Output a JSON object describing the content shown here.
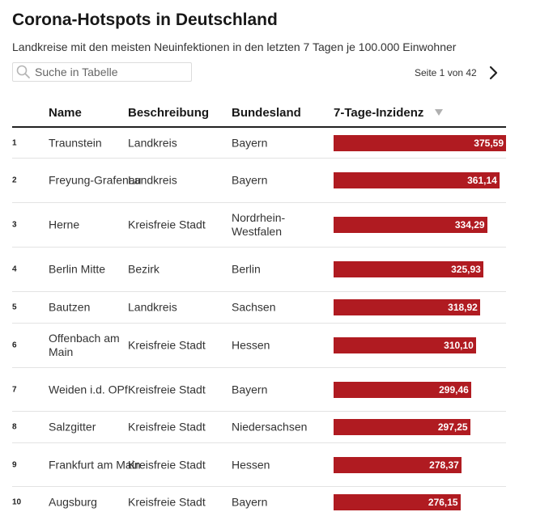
{
  "header": {
    "title": "Corona-Hotspots in Deutschland",
    "subtitle": "Landkreise mit den meisten Neuinfektionen in den letzten 7 Tagen je 100.000 Einwohner"
  },
  "search": {
    "placeholder": "Suche in Tabelle",
    "icon": "search-icon"
  },
  "pagination": {
    "info": "Seite 1 von 42",
    "next_icon": "chevron-right-icon"
  },
  "table": {
    "columns": [
      "Name",
      "Beschreibung",
      "Bundesland",
      "7-Tage-Inzidenz"
    ],
    "sort_icon": "sort-down-icon"
  },
  "colors": {
    "bar": "#b01b21",
    "bar_label": "#ffffff",
    "divider": "#e3e3e3"
  },
  "chart_data": {
    "type": "table",
    "title": "Corona-Hotspots in Deutschland",
    "subtitle": "Landkreise mit den meisten Neuinfektionen in den letzten 7 Tagen je 100.000 Einwohner",
    "xlim": [
      0,
      375.59
    ],
    "rows": [
      {
        "rank": "1",
        "name": "Traunstein",
        "description": "Landkreis",
        "state": "Bayern",
        "value": 375.59,
        "label": "375,59"
      },
      {
        "rank": "2",
        "name": "Freyung-Grafenau",
        "description": "Landkreis",
        "state": "Bayern",
        "value": 361.14,
        "label": "361,14"
      },
      {
        "rank": "3",
        "name": "Herne",
        "description": "Kreisfreie Stadt",
        "state": "Nordrhein-Westfalen",
        "value": 334.29,
        "label": "334,29"
      },
      {
        "rank": "4",
        "name": "Berlin Mitte",
        "description": "Bezirk",
        "state": "Berlin",
        "value": 325.93,
        "label": "325,93"
      },
      {
        "rank": "5",
        "name": "Bautzen",
        "description": "Landkreis",
        "state": "Sachsen",
        "value": 318.92,
        "label": "318,92"
      },
      {
        "rank": "6",
        "name": "Offenbach am Main",
        "description": "Kreisfreie Stadt",
        "state": "Hessen",
        "value": 310.1,
        "label": "310,10"
      },
      {
        "rank": "7",
        "name": "Weiden i.d. OPf.",
        "description": "Kreisfreie Stadt",
        "state": "Bayern",
        "value": 299.46,
        "label": "299,46"
      },
      {
        "rank": "8",
        "name": "Salzgitter",
        "description": "Kreisfreie Stadt",
        "state": "Niedersachsen",
        "value": 297.25,
        "label": "297,25"
      },
      {
        "rank": "9",
        "name": "Frankfurt am Main",
        "description": "Kreisfreie Stadt",
        "state": "Hessen",
        "value": 278.37,
        "label": "278,37"
      },
      {
        "rank": "10",
        "name": "Augsburg",
        "description": "Kreisfreie Stadt",
        "state": "Bayern",
        "value": 276.15,
        "label": "276,15"
      }
    ]
  }
}
